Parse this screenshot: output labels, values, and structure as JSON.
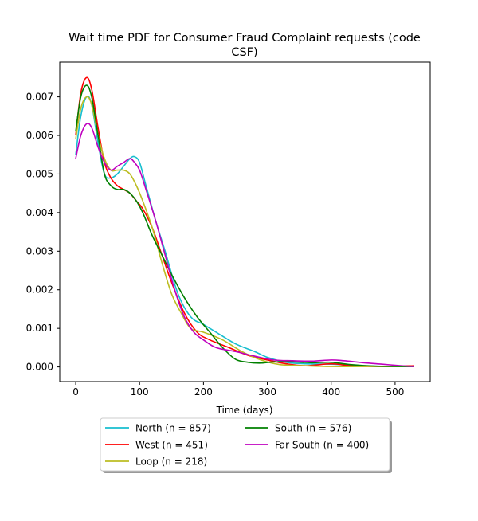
{
  "chart_data": {
    "type": "line",
    "title_line1": "Wait time PDF for Consumer Fraud Complaint  requests (code",
    "title_line2": "CSF)",
    "xlabel": "Time (days)",
    "ylabel": "",
    "xlim": [
      -25,
      555
    ],
    "ylim": [
      -0.00038,
      0.0079
    ],
    "xticks": [
      0,
      100,
      200,
      300,
      400,
      500
    ],
    "yticks": [
      0.0,
      0.001,
      0.002,
      0.003,
      0.004,
      0.005,
      0.006,
      0.007
    ],
    "ytick_labels": [
      "0.000",
      "0.001",
      "0.002",
      "0.003",
      "0.004",
      "0.005",
      "0.006",
      "0.007"
    ],
    "grid": false,
    "legend_placement": "below-center",
    "series": [
      {
        "name": "North (n = 857)",
        "color": "#17becf",
        "points": [
          [
            0,
            0.0055
          ],
          [
            8,
            0.0065
          ],
          [
            17,
            0.007
          ],
          [
            25,
            0.0068
          ],
          [
            35,
            0.0058
          ],
          [
            45,
            0.005
          ],
          [
            55,
            0.0049
          ],
          [
            65,
            0.005
          ],
          [
            75,
            0.0052
          ],
          [
            85,
            0.0054
          ],
          [
            92,
            0.00545
          ],
          [
            100,
            0.0053
          ],
          [
            110,
            0.0047
          ],
          [
            125,
            0.0038
          ],
          [
            140,
            0.003
          ],
          [
            160,
            0.0019
          ],
          [
            180,
            0.0013
          ],
          [
            200,
            0.0011
          ],
          [
            220,
            0.0009
          ],
          [
            250,
            0.0006
          ],
          [
            280,
            0.0004
          ],
          [
            300,
            0.00025
          ],
          [
            330,
            0.00012
          ],
          [
            360,
            8e-05
          ],
          [
            400,
            7e-05
          ],
          [
            450,
            3e-05
          ],
          [
            500,
            1e-05
          ],
          [
            530,
            1e-05
          ]
        ]
      },
      {
        "name": "West (n = 451)",
        "color": "#ff0000",
        "points": [
          [
            0,
            0.006
          ],
          [
            8,
            0.0071
          ],
          [
            17,
            0.0075
          ],
          [
            25,
            0.0072
          ],
          [
            35,
            0.0062
          ],
          [
            45,
            0.0053
          ],
          [
            55,
            0.0049
          ],
          [
            65,
            0.0047
          ],
          [
            75,
            0.0046
          ],
          [
            85,
            0.0045
          ],
          [
            95,
            0.0043
          ],
          [
            105,
            0.0041
          ],
          [
            120,
            0.0036
          ],
          [
            135,
            0.0029
          ],
          [
            150,
            0.0022
          ],
          [
            170,
            0.0014
          ],
          [
            190,
            0.0009
          ],
          [
            210,
            0.0007
          ],
          [
            240,
            0.0005
          ],
          [
            270,
            0.0003
          ],
          [
            300,
            0.00018
          ],
          [
            330,
            8e-05
          ],
          [
            360,
            3e-05
          ],
          [
            400,
            8e-05
          ],
          [
            430,
            3e-05
          ],
          [
            470,
            1e-05
          ],
          [
            530,
            3e-05
          ]
        ]
      },
      {
        "name": "Loop (n = 218)",
        "color": "#bcbd22",
        "points": [
          [
            0,
            0.0059
          ],
          [
            8,
            0.0067
          ],
          [
            17,
            0.007
          ],
          [
            25,
            0.0068
          ],
          [
            35,
            0.006
          ],
          [
            45,
            0.0054
          ],
          [
            55,
            0.0051
          ],
          [
            65,
            0.0051
          ],
          [
            75,
            0.0051
          ],
          [
            85,
            0.005
          ],
          [
            95,
            0.0047
          ],
          [
            105,
            0.0043
          ],
          [
            120,
            0.0036
          ],
          [
            135,
            0.0027
          ],
          [
            150,
            0.0019
          ],
          [
            165,
            0.0014
          ],
          [
            180,
            0.001
          ],
          [
            200,
            0.0009
          ],
          [
            230,
            0.0007
          ],
          [
            260,
            0.0004
          ],
          [
            290,
            0.00018
          ],
          [
            320,
            6e-05
          ],
          [
            360,
            3e-05
          ],
          [
            400,
            1e-05
          ],
          [
            450,
            1e-05
          ],
          [
            500,
            1e-05
          ],
          [
            530,
            1e-05
          ]
        ]
      },
      {
        "name": "South (n = 576)",
        "color": "#008000",
        "points": [
          [
            0,
            0.0061
          ],
          [
            8,
            0.007
          ],
          [
            17,
            0.0073
          ],
          [
            25,
            0.007
          ],
          [
            35,
            0.006
          ],
          [
            45,
            0.005
          ],
          [
            55,
            0.0047
          ],
          [
            65,
            0.0046
          ],
          [
            75,
            0.0046
          ],
          [
            85,
            0.0045
          ],
          [
            95,
            0.0043
          ],
          [
            105,
            0.004
          ],
          [
            120,
            0.0034
          ],
          [
            135,
            0.0029
          ],
          [
            150,
            0.0024
          ],
          [
            170,
            0.0018
          ],
          [
            190,
            0.0013
          ],
          [
            210,
            0.0009
          ],
          [
            230,
            0.0005
          ],
          [
            250,
            0.0002
          ],
          [
            270,
            0.00012
          ],
          [
            290,
            0.0001
          ],
          [
            310,
            0.00013
          ],
          [
            340,
            0.00013
          ],
          [
            370,
            0.00011
          ],
          [
            400,
            0.00012
          ],
          [
            430,
            6e-05
          ],
          [
            470,
            2e-05
          ],
          [
            530,
            1e-05
          ]
        ]
      },
      {
        "name": "Far South (n = 400)",
        "color": "#bf00bf",
        "points": [
          [
            0,
            0.0054
          ],
          [
            8,
            0.006
          ],
          [
            17,
            0.0063
          ],
          [
            25,
            0.0062
          ],
          [
            35,
            0.0057
          ],
          [
            45,
            0.0053
          ],
          [
            55,
            0.0051
          ],
          [
            65,
            0.0052
          ],
          [
            75,
            0.0053
          ],
          [
            85,
            0.0054
          ],
          [
            92,
            0.0053
          ],
          [
            100,
            0.0051
          ],
          [
            110,
            0.0046
          ],
          [
            125,
            0.0038
          ],
          [
            140,
            0.0029
          ],
          [
            155,
            0.002
          ],
          [
            170,
            0.0013
          ],
          [
            185,
            0.0009
          ],
          [
            200,
            0.0007
          ],
          [
            220,
            0.0005
          ],
          [
            250,
            0.0004
          ],
          [
            280,
            0.00028
          ],
          [
            310,
            0.00018
          ],
          [
            340,
            0.00016
          ],
          [
            370,
            0.00015
          ],
          [
            400,
            0.00018
          ],
          [
            420,
            0.00016
          ],
          [
            450,
            0.00011
          ],
          [
            480,
            7e-05
          ],
          [
            510,
            3e-05
          ],
          [
            530,
            1e-05
          ]
        ]
      }
    ]
  }
}
